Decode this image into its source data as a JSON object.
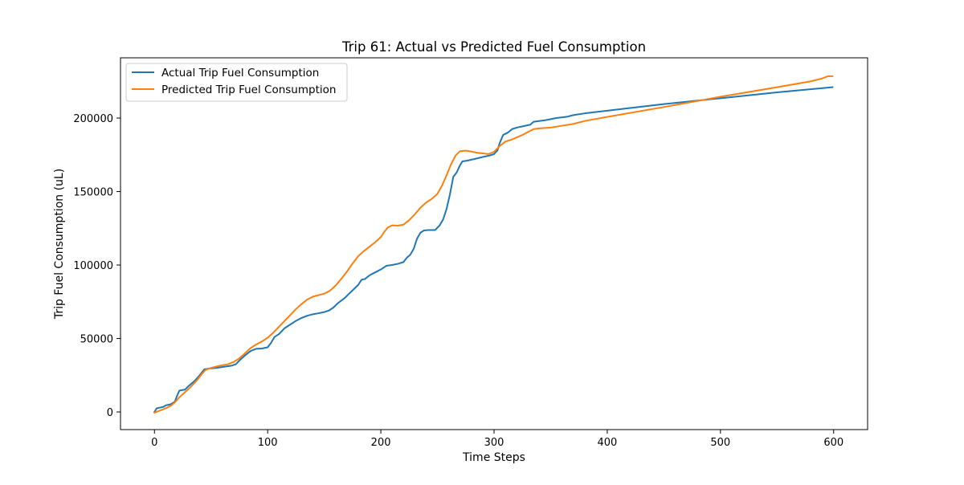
{
  "chart_data": {
    "type": "line",
    "title": "Trip 61: Actual vs Predicted Fuel Consumption",
    "xlabel": "Time Steps",
    "ylabel": "Trip Fuel Consumption (uL)",
    "xlim": [
      -30,
      630
    ],
    "ylim": [
      -12000,
      241000
    ],
    "xticks": [
      0,
      100,
      200,
      300,
      400,
      500,
      600
    ],
    "yticks": [
      0,
      50000,
      100000,
      150000,
      200000
    ],
    "legend_position": "upper-left",
    "grid": false,
    "series": [
      {
        "name": "Actual Trip Fuel Consumption",
        "color": "#1f77b4",
        "points": [
          [
            0,
            0
          ],
          [
            2,
            2500
          ],
          [
            5,
            3000
          ],
          [
            8,
            3500
          ],
          [
            10,
            4500
          ],
          [
            13,
            5000
          ],
          [
            15,
            5500
          ],
          [
            18,
            7000
          ],
          [
            20,
            11000
          ],
          [
            22,
            14500
          ],
          [
            25,
            15000
          ],
          [
            27,
            15200
          ],
          [
            30,
            17500
          ],
          [
            33,
            19500
          ],
          [
            36,
            21500
          ],
          [
            40,
            25000
          ],
          [
            44,
            29000
          ],
          [
            48,
            29500
          ],
          [
            55,
            30000
          ],
          [
            62,
            30800
          ],
          [
            68,
            31500
          ],
          [
            72,
            32500
          ],
          [
            75,
            35000
          ],
          [
            80,
            38500
          ],
          [
            85,
            41500
          ],
          [
            90,
            43000
          ],
          [
            95,
            43200
          ],
          [
            100,
            44000
          ],
          [
            103,
            47000
          ],
          [
            106,
            51000
          ],
          [
            110,
            53000
          ],
          [
            115,
            57000
          ],
          [
            120,
            59500
          ],
          [
            125,
            62000
          ],
          [
            130,
            64000
          ],
          [
            135,
            65500
          ],
          [
            140,
            66500
          ],
          [
            145,
            67200
          ],
          [
            150,
            68000
          ],
          [
            154,
            69000
          ],
          [
            158,
            71000
          ],
          [
            162,
            74000
          ],
          [
            168,
            77500
          ],
          [
            172,
            80500
          ],
          [
            176,
            83500
          ],
          [
            180,
            86500
          ],
          [
            183,
            90000
          ],
          [
            186,
            90500
          ],
          [
            190,
            93000
          ],
          [
            195,
            95000
          ],
          [
            200,
            97000
          ],
          [
            205,
            99500
          ],
          [
            210,
            100000
          ],
          [
            215,
            100800
          ],
          [
            220,
            102000
          ],
          [
            223,
            105000
          ],
          [
            226,
            107000
          ],
          [
            229,
            111000
          ],
          [
            232,
            118000
          ],
          [
            235,
            122000
          ],
          [
            238,
            123500
          ],
          [
            242,
            123800
          ],
          [
            248,
            123800
          ],
          [
            252,
            127000
          ],
          [
            255,
            131000
          ],
          [
            258,
            138000
          ],
          [
            261,
            148000
          ],
          [
            264,
            160000
          ],
          [
            267,
            163000
          ],
          [
            270,
            168000
          ],
          [
            272,
            170500
          ],
          [
            276,
            171000
          ],
          [
            282,
            172000
          ],
          [
            290,
            173500
          ],
          [
            296,
            174500
          ],
          [
            300,
            175500
          ],
          [
            303,
            178000
          ],
          [
            305,
            183000
          ],
          [
            308,
            188500
          ],
          [
            312,
            190000
          ],
          [
            316,
            192500
          ],
          [
            320,
            193500
          ],
          [
            326,
            194500
          ],
          [
            332,
            195500
          ],
          [
            335,
            197500
          ],
          [
            345,
            198500
          ],
          [
            355,
            200000
          ],
          [
            365,
            201000
          ],
          [
            370,
            202000
          ],
          [
            380,
            203200
          ],
          [
            400,
            205000
          ],
          [
            450,
            209500
          ],
          [
            500,
            213500
          ],
          [
            550,
            217500
          ],
          [
            599,
            221000
          ]
        ]
      },
      {
        "name": "Predicted Trip Fuel Consumption",
        "color": "#ff7f0e",
        "points": [
          [
            0,
            -500
          ],
          [
            5,
            1000
          ],
          [
            10,
            2500
          ],
          [
            15,
            4500
          ],
          [
            18,
            6500
          ],
          [
            22,
            10000
          ],
          [
            27,
            13500
          ],
          [
            32,
            17000
          ],
          [
            38,
            22000
          ],
          [
            42,
            26000
          ],
          [
            45,
            28500
          ],
          [
            50,
            30000
          ],
          [
            58,
            31500
          ],
          [
            65,
            32500
          ],
          [
            70,
            34000
          ],
          [
            75,
            36500
          ],
          [
            80,
            40000
          ],
          [
            85,
            43500
          ],
          [
            90,
            46000
          ],
          [
            95,
            48000
          ],
          [
            100,
            50500
          ],
          [
            105,
            54000
          ],
          [
            110,
            58000
          ],
          [
            115,
            62000
          ],
          [
            120,
            66000
          ],
          [
            125,
            70000
          ],
          [
            130,
            73500
          ],
          [
            135,
            76500
          ],
          [
            140,
            78500
          ],
          [
            145,
            79500
          ],
          [
            150,
            80500
          ],
          [
            155,
            82500
          ],
          [
            160,
            86000
          ],
          [
            165,
            90500
          ],
          [
            170,
            95500
          ],
          [
            175,
            101000
          ],
          [
            180,
            106000
          ],
          [
            185,
            109500
          ],
          [
            190,
            112500
          ],
          [
            195,
            115500
          ],
          [
            200,
            119000
          ],
          [
            203,
            122500
          ],
          [
            206,
            125500
          ],
          [
            210,
            127000
          ],
          [
            215,
            126800
          ],
          [
            220,
            127500
          ],
          [
            225,
            130500
          ],
          [
            230,
            134500
          ],
          [
            235,
            139000
          ],
          [
            240,
            142500
          ],
          [
            245,
            145000
          ],
          [
            250,
            148500
          ],
          [
            254,
            154000
          ],
          [
            258,
            161000
          ],
          [
            262,
            168500
          ],
          [
            266,
            174500
          ],
          [
            270,
            177500
          ],
          [
            275,
            177800
          ],
          [
            280,
            177200
          ],
          [
            285,
            176400
          ],
          [
            290,
            176000
          ],
          [
            295,
            175500
          ],
          [
            300,
            177000
          ],
          [
            305,
            181000
          ],
          [
            310,
            184000
          ],
          [
            315,
            185200
          ],
          [
            320,
            186800
          ],
          [
            325,
            188500
          ],
          [
            330,
            190500
          ],
          [
            335,
            192500
          ],
          [
            340,
            193000
          ],
          [
            350,
            193500
          ],
          [
            360,
            194800
          ],
          [
            370,
            196000
          ],
          [
            380,
            198000
          ],
          [
            400,
            200800
          ],
          [
            450,
            207500
          ],
          [
            500,
            214500
          ],
          [
            550,
            221000
          ],
          [
            580,
            225000
          ],
          [
            590,
            227000
          ],
          [
            595,
            228500
          ],
          [
            599,
            228500
          ]
        ]
      }
    ]
  }
}
